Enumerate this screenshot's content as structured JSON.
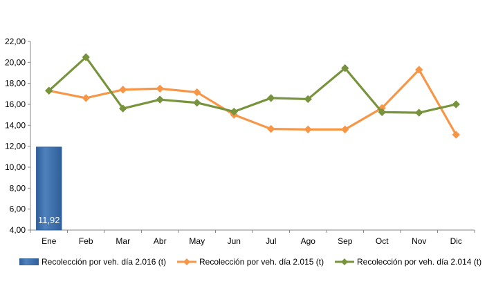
{
  "colors": {
    "bar": "#4f81bd",
    "bar_dark": "#2e5f9a",
    "series_2015": "#f79646",
    "series_2014": "#77933c",
    "axis": "#868686",
    "data_label": "#ffffff"
  },
  "chart_data": {
    "type": "line",
    "categories": [
      "Ene",
      "Feb",
      "Mar",
      "Abr",
      "May",
      "Jun",
      "Jul",
      "Ago",
      "Sep",
      "Oct",
      "Nov",
      "Dic"
    ],
    "ylim": [
      4,
      22
    ],
    "yticks": [
      "4,00",
      "6,00",
      "8,00",
      "10,00",
      "12,00",
      "14,00",
      "16,00",
      "18,00",
      "20,00",
      "22,00"
    ],
    "grid": false,
    "legend_position": "bottom",
    "series": [
      {
        "name": "Recolección por veh. día 2.016 (t)",
        "kind": "bar",
        "values": [
          11.92,
          null,
          null,
          null,
          null,
          null,
          null,
          null,
          null,
          null,
          null,
          null
        ],
        "data_labels": [
          "11,92"
        ]
      },
      {
        "name": "Recolección por veh. día 2.015 (t)",
        "kind": "line",
        "marker": "diamond",
        "values": [
          17.3,
          16.6,
          17.4,
          17.5,
          17.15,
          15.0,
          13.65,
          13.6,
          13.6,
          15.65,
          19.3,
          13.1
        ]
      },
      {
        "name": "Recolección por veh. día 2.014 (t)",
        "kind": "line",
        "marker": "diamond",
        "values": [
          17.3,
          20.5,
          15.6,
          16.45,
          16.15,
          15.3,
          16.6,
          16.5,
          19.45,
          15.25,
          15.2,
          16.0
        ]
      }
    ]
  }
}
